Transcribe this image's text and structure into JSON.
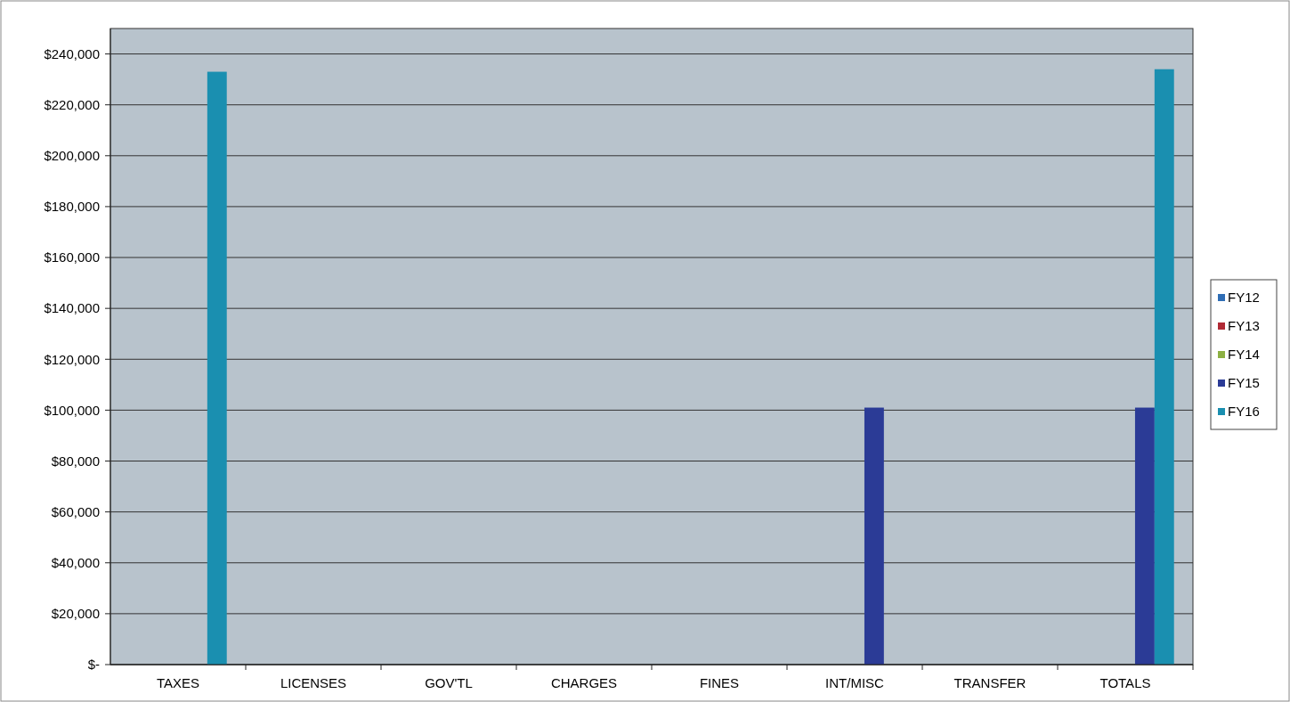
{
  "chart_data": {
    "type": "bar",
    "categories": [
      "TAXES",
      "LICENSES",
      "GOV'TL",
      "CHARGES",
      "FINES",
      "INT/MISC",
      "TRANSFER",
      "TOTALS"
    ],
    "series": [
      {
        "name": "FY12",
        "color": "#2f6db5",
        "values": [
          0,
          0,
          0,
          0,
          0,
          0,
          0,
          0
        ]
      },
      {
        "name": "FY13",
        "color": "#b02a35",
        "values": [
          0,
          0,
          0,
          0,
          0,
          0,
          0,
          0
        ]
      },
      {
        "name": "FY14",
        "color": "#8cb043",
        "values": [
          0,
          0,
          0,
          0,
          0,
          0,
          0,
          0
        ]
      },
      {
        "name": "FY15",
        "color": "#2b3b96",
        "values": [
          0,
          0,
          0,
          0,
          0,
          101000,
          0,
          101000
        ]
      },
      {
        "name": "FY16",
        "color": "#1a8fb0",
        "values": [
          233000,
          0,
          0,
          0,
          0,
          0,
          0,
          234000
        ]
      }
    ],
    "ylim": [
      0,
      250000
    ],
    "yticks": [
      {
        "value": 0,
        "label": "$-"
      },
      {
        "value": 20000,
        "label": "$20,000"
      },
      {
        "value": 40000,
        "label": "$40,000"
      },
      {
        "value": 60000,
        "label": "$60,000"
      },
      {
        "value": 80000,
        "label": "$80,000"
      },
      {
        "value": 100000,
        "label": "$100,000"
      },
      {
        "value": 120000,
        "label": "$120,000"
      },
      {
        "value": 140000,
        "label": "$140,000"
      },
      {
        "value": 160000,
        "label": "$160,000"
      },
      {
        "value": 180000,
        "label": "$180,000"
      },
      {
        "value": 200000,
        "label": "$200,000"
      },
      {
        "value": 220000,
        "label": "$220,000"
      },
      {
        "value": 240000,
        "label": "$240,000"
      }
    ],
    "grid": "y",
    "legend": "right"
  }
}
